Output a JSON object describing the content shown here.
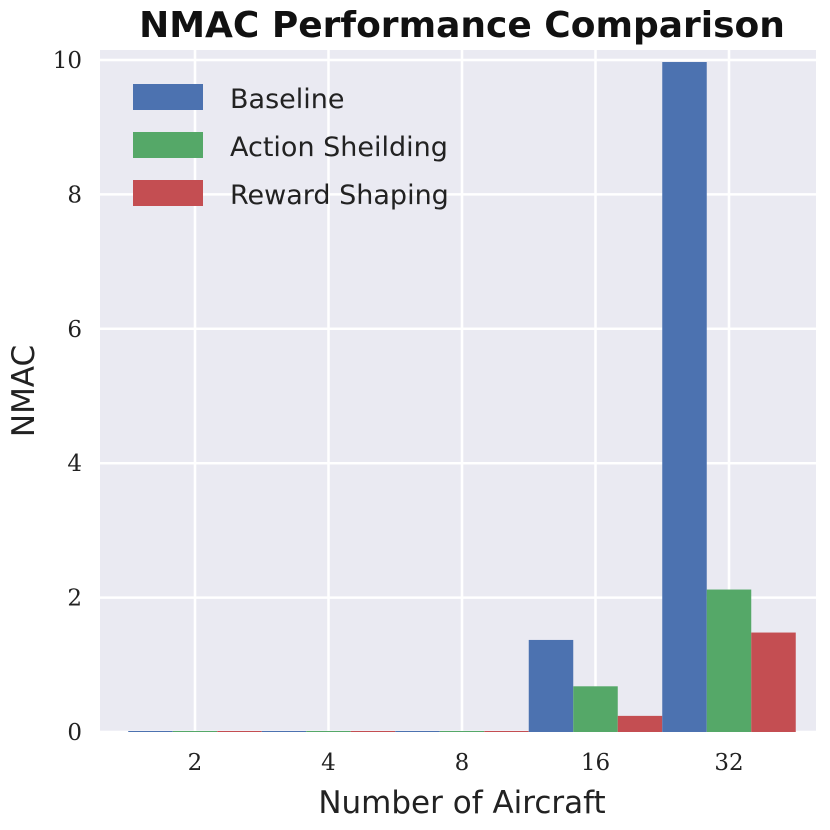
{
  "chart_data": {
    "type": "bar",
    "title": "NMAC Performance Comparison",
    "xlabel": "Number of Aircraft",
    "ylabel": "NMAC",
    "categories": [
      "2",
      "4",
      "8",
      "16",
      "32"
    ],
    "series": [
      {
        "name": "Baseline",
        "color": "#4C72B0",
        "values": [
          0.0,
          0.0,
          0.0,
          1.37,
          9.97
        ]
      },
      {
        "name": "Action Sheilding",
        "color": "#55A868",
        "values": [
          0.0,
          0.0,
          0.0,
          0.68,
          2.12
        ]
      },
      {
        "name": "Reward Shaping",
        "color": "#C44E52",
        "values": [
          0.0,
          0.0,
          0.0,
          0.24,
          1.48
        ]
      }
    ],
    "ylim": [
      0,
      10
    ],
    "yticks": [
      "0",
      "2",
      "4",
      "6",
      "8",
      "10"
    ],
    "grid": true,
    "legend_position": "top-left",
    "background": "#EAEAF2"
  }
}
